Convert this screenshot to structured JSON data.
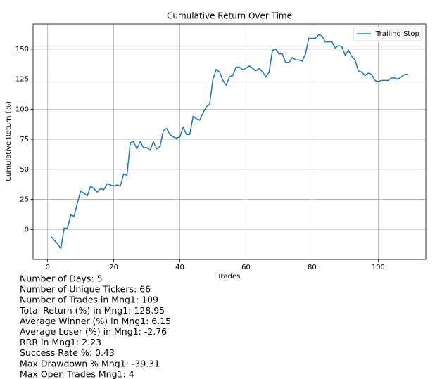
{
  "chart_data": {
    "type": "line",
    "title": "Cumulative Return Over Time",
    "xlabel": "Trades",
    "ylabel": "Cumulative Return (%)",
    "x": [
      1,
      2,
      3,
      4,
      5,
      6,
      7,
      8,
      9,
      10,
      11,
      12,
      13,
      14,
      15,
      16,
      17,
      18,
      19,
      20,
      21,
      22,
      23,
      24,
      25,
      26,
      27,
      28,
      29,
      30,
      31,
      32,
      33,
      34,
      35,
      36,
      37,
      38,
      39,
      40,
      41,
      42,
      43,
      44,
      45,
      46,
      47,
      48,
      49,
      50,
      51,
      52,
      53,
      54,
      55,
      56,
      57,
      58,
      59,
      60,
      61,
      62,
      63,
      64,
      65,
      66,
      67,
      68,
      69,
      70,
      71,
      72,
      73,
      74,
      75,
      76,
      77,
      78,
      79,
      80,
      81,
      82,
      83,
      84,
      85,
      86,
      87,
      88,
      89,
      90,
      91,
      92,
      93,
      94,
      95,
      96,
      97,
      98,
      99,
      100,
      101,
      102,
      103,
      104,
      105,
      106,
      107,
      108,
      109
    ],
    "series": [
      {
        "name": "Trailing Stop",
        "color": "#1f77b4",
        "values": [
          -6,
          -9,
          -12,
          -16,
          1,
          1,
          12,
          11,
          22,
          32,
          30,
          28,
          36,
          34,
          31,
          34,
          33,
          38,
          37,
          36,
          37,
          36,
          46,
          45,
          72,
          73,
          67,
          73,
          68,
          68,
          66,
          73,
          67,
          69,
          82,
          84,
          79,
          77,
          76,
          77,
          85,
          79,
          79,
          94,
          92,
          91,
          97,
          102,
          104,
          125,
          133,
          131,
          124,
          120,
          127,
          128,
          135,
          135,
          133,
          134,
          136,
          134,
          132,
          134,
          131,
          127,
          131,
          149,
          150,
          146,
          146,
          139,
          139,
          143,
          141,
          141,
          140,
          146,
          159,
          159,
          159,
          162,
          161,
          156,
          156,
          156,
          151,
          153,
          152,
          145,
          149,
          144,
          141,
          132,
          131,
          128,
          130,
          129,
          124,
          123,
          124,
          124,
          124,
          126,
          126,
          125,
          127,
          129,
          128.95
        ]
      }
    ],
    "xlim": [
      -4.4,
      114.4
    ],
    "ylim": [
      -25,
      171
    ],
    "xticks": [
      0,
      20,
      40,
      60,
      80,
      100
    ],
    "yticks": [
      0,
      25,
      50,
      75,
      100,
      125,
      150
    ],
    "grid": true,
    "legend": "upper right"
  },
  "stats": {
    "lines": [
      "Number of Days: 5",
      "Number of Unique Tickers: 66",
      "Number of Trades in Mng1: 109",
      "Total Return (%) in Mng1: 128.95",
      "Average Winner (%) in Mng1: 6.15",
      "Average Loser (%) in Mng1: -2.76",
      "RRR in Mng1: 2.23",
      "Success Rate %: 0.43",
      "Max Drawdown % Mng1: -39.31",
      "Max Open Trades Mng1: 4"
    ]
  }
}
